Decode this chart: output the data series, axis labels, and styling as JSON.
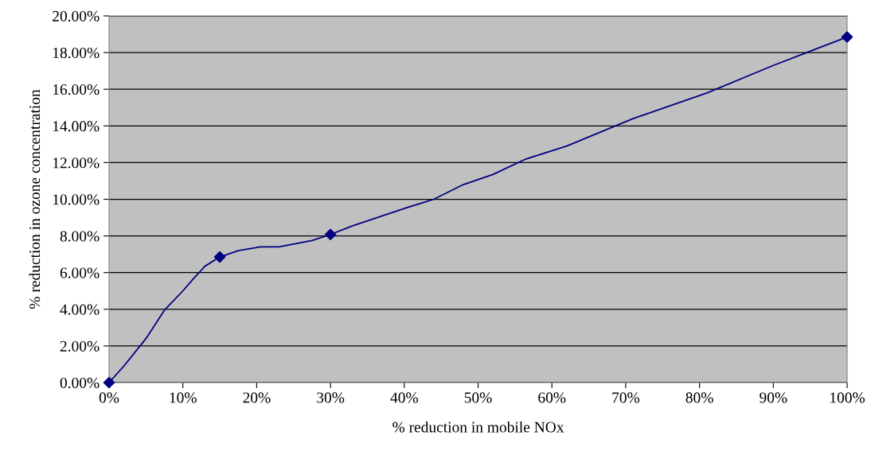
{
  "chart_data": {
    "type": "line",
    "xlabel": "% reduction in mobile NOx",
    "ylabel": "% reduction in ozone concentration",
    "x": [
      0,
      2,
      5,
      7.5,
      10,
      11.5,
      13,
      15,
      17.5,
      20.5,
      23,
      27.5,
      30,
      33,
      40,
      44,
      48,
      52,
      56.5,
      62,
      71,
      81,
      90,
      100
    ],
    "series": [
      {
        "color": "#000080",
        "values": [
          0,
          0.9,
          2.4,
          3.95,
          5.0,
          5.7,
          6.35,
          6.85,
          7.2,
          7.4,
          7.4,
          7.75,
          8.08,
          8.55,
          9.5,
          10.0,
          10.8,
          11.35,
          12.2,
          12.9,
          14.4,
          15.8,
          17.3,
          18.85
        ]
      },
      {
        "type": "scatter",
        "marker": "diamond",
        "color": "#000080",
        "x": [
          0,
          15,
          30,
          100
        ],
        "values": [
          0,
          6.85,
          8.08,
          18.85
        ]
      }
    ],
    "xlim": [
      0,
      100
    ],
    "xticks": [
      {
        "value": 0,
        "label": "0%"
      },
      {
        "value": 10,
        "label": "10%"
      },
      {
        "value": 20,
        "label": "20%"
      },
      {
        "value": 30,
        "label": "30%"
      },
      {
        "value": 40,
        "label": "40%"
      },
      {
        "value": 50,
        "label": "50%"
      },
      {
        "value": 60,
        "label": "60%"
      },
      {
        "value": 70,
        "label": "70%"
      },
      {
        "value": 80,
        "label": "80%"
      },
      {
        "value": 90,
        "label": "90%"
      },
      {
        "value": 100,
        "label": "100%"
      }
    ],
    "ylim": [
      0,
      20
    ],
    "yticks": [
      {
        "value": 0,
        "label": "0.00%"
      },
      {
        "value": 2,
        "label": "2.00%"
      },
      {
        "value": 4,
        "label": "4.00%"
      },
      {
        "value": 6,
        "label": "6.00%"
      },
      {
        "value": 8,
        "label": "8.00%"
      },
      {
        "value": 10,
        "label": "10.00%"
      },
      {
        "value": 12,
        "label": "12.00%"
      },
      {
        "value": 14,
        "label": "14.00%"
      },
      {
        "value": 16,
        "label": "16.00%"
      },
      {
        "value": 18,
        "label": "18.00%"
      },
      {
        "value": 20,
        "label": "20.00%"
      }
    ],
    "grid": "y",
    "marker": "none",
    "line_style": "solid"
  }
}
